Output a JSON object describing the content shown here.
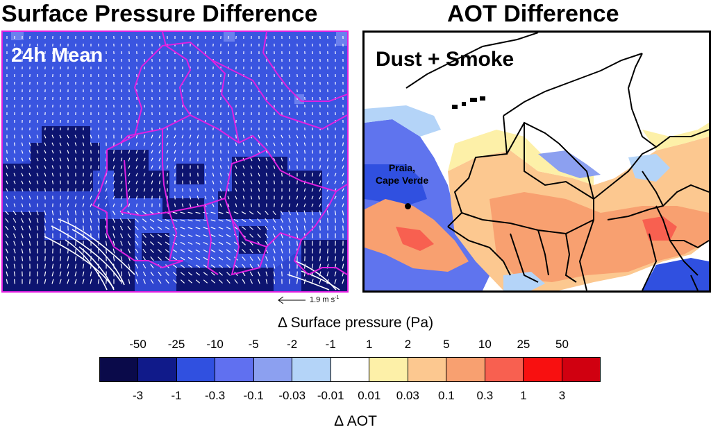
{
  "left_panel": {
    "title": "Surface Pressure Difference",
    "overlay": "24h Mean",
    "reference_vector": {
      "label": "1.9 m s",
      "exponent": "-1"
    },
    "colors": {
      "border": "#e020e0",
      "background": "#3a55e0",
      "boundaries": "#e020e0",
      "vectors": "#ffffff"
    }
  },
  "right_panel": {
    "title": "AOT Difference",
    "overlay": "Dust + Smoke",
    "city_label_line1": "Praia,",
    "city_label_line2": "Cape Verde",
    "colors": {
      "border": "#000000",
      "boundaries": "#000000"
    }
  },
  "colorbar": {
    "pressure_title": "Δ Surface pressure (Pa)",
    "pressure_ticks": [
      "-50",
      "-25",
      "-10",
      "-5",
      "-2",
      "-1",
      "1",
      "2",
      "5",
      "10",
      "25",
      "50"
    ],
    "aot_title": "Δ AOT",
    "aot_ticks": [
      "-3",
      "-1",
      "-0.3",
      "-0.1",
      "-0.03",
      "-0.01",
      "0.01",
      "0.03",
      "0.1",
      "0.3",
      "1",
      "3"
    ],
    "colors": [
      "#0a0a4a",
      "#101a8a",
      "#3050e0",
      "#6070f0",
      "#8ca0f0",
      "#b4d4f8",
      "#ffffff",
      "#fdf0a8",
      "#fcc890",
      "#f8a070",
      "#f86050",
      "#f81010",
      "#d00010"
    ]
  }
}
